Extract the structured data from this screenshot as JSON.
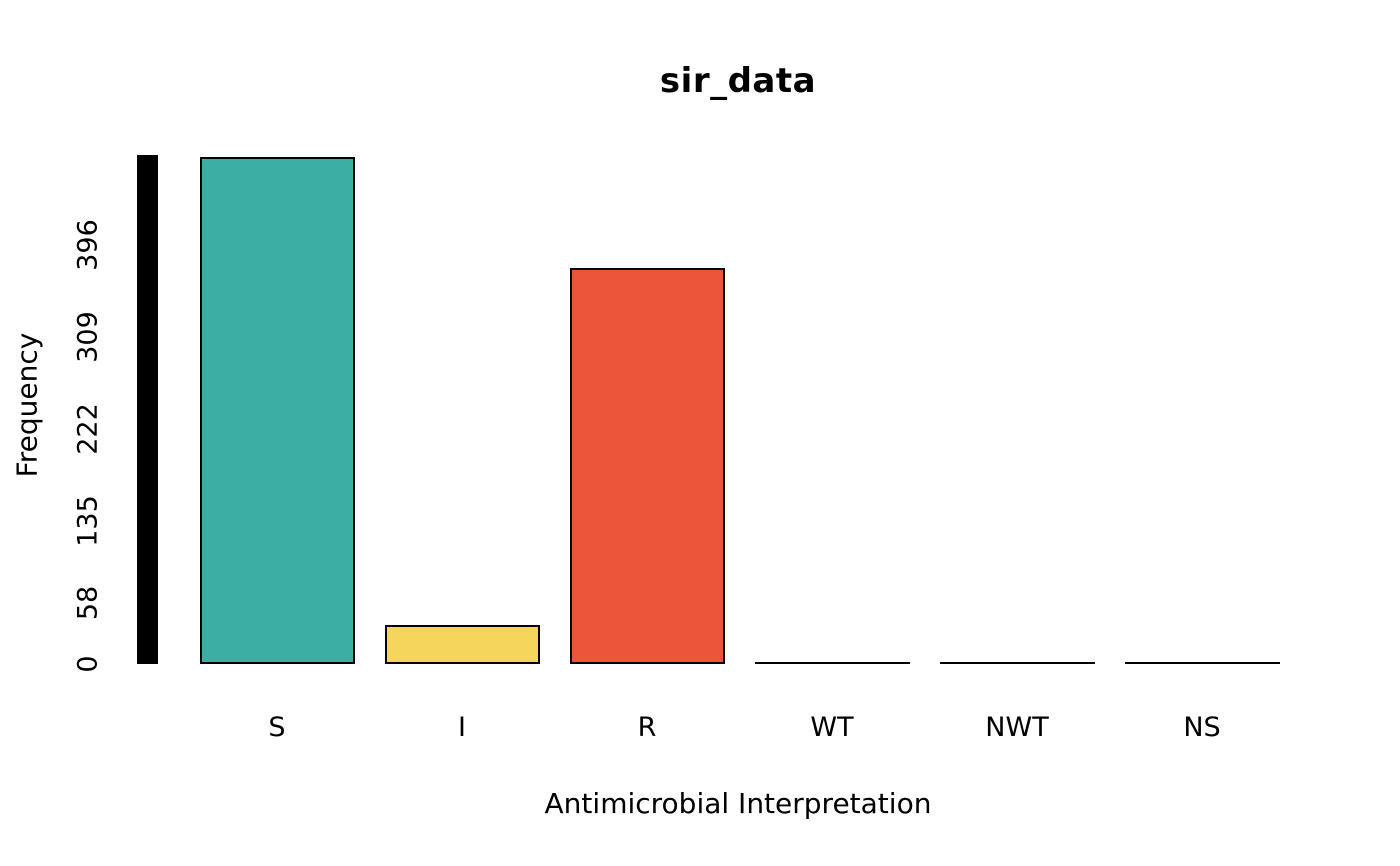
{
  "chart_data": {
    "type": "bar",
    "title": "sir_data",
    "xlabel": "Antimicrobial Interpretation",
    "ylabel": "Frequency",
    "categories": [
      "S",
      "I",
      "R",
      "WT",
      "NWT",
      "NS"
    ],
    "values": [
      479,
      37,
      374,
      0,
      0,
      0
    ],
    "series": [
      {
        "name": "Frequency",
        "values": [
          479,
          37,
          374,
          0,
          0,
          0
        ]
      }
    ],
    "bar_colors": [
      "#3CAEA3",
      "#F6D55C",
      "#ED553B",
      "#000000",
      "#000000",
      "#000000"
    ],
    "bar_border_color": "#000000",
    "yticks": [
      0,
      58,
      135,
      222,
      309,
      396
    ],
    "ylim": [
      0,
      481
    ],
    "y_axis_bar": {
      "color": "#000000",
      "from": 0,
      "to": 481
    },
    "grid": false,
    "legend": false,
    "background": "#ffffff"
  }
}
